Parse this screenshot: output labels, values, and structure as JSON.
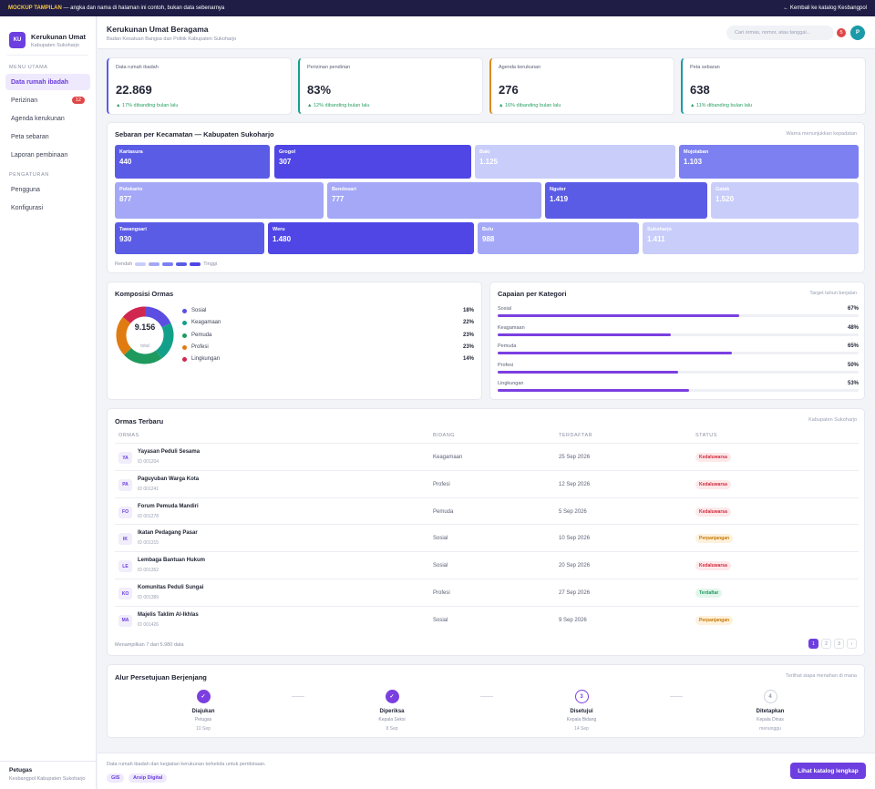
{
  "banner": {
    "tag": "MOCKUP TAMPILAN",
    "text": " — angka dan nama di halaman ini contoh, bukan data sebenarnya",
    "back": "← Kembali ke katalog Kesbangpol"
  },
  "brand": {
    "initials": "KU",
    "name": "Kerukunan Umat",
    "sub": "Kabupaten Sukoharjo"
  },
  "sidebar": {
    "section1": "MENU UTAMA",
    "items": [
      {
        "label": "Data rumah ibadah",
        "active": true
      },
      {
        "label": "Perizinan",
        "badge": "12"
      },
      {
        "label": "Agenda kerukunan"
      },
      {
        "label": "Peta sebaran"
      },
      {
        "label": "Laporan pembinaan"
      }
    ],
    "section2": "PENGATURAN",
    "items2": [
      {
        "label": "Pengguna"
      },
      {
        "label": "Konfigurasi"
      }
    ],
    "footer": {
      "role": "Petugas",
      "org": "Kesbangpol Kabupaten Sukoharjo"
    }
  },
  "header": {
    "title": "Kerukunan Umat Beragama",
    "subtitle": "Badan Kesatuan Bangsa dan Politik Kabupaten Sukoharjo",
    "search_placeholder": "Cari ormas, nomor, atau tanggal...",
    "notif_count": "5",
    "avatar": "P"
  },
  "stats": [
    {
      "label": "Data rumah ibadah",
      "value": "22.869",
      "delta": "▲ 17% dibanding bulan lalu",
      "color": "#5b5ce6"
    },
    {
      "label": "Perizinan pendirian",
      "value": "83%",
      "delta": "▲ 12% dibanding bulan lalu",
      "color": "#13a08a"
    },
    {
      "label": "Agenda kerukunan",
      "value": "276",
      "delta": "▲ 16% dibanding bulan lalu",
      "color": "#e08a12"
    },
    {
      "label": "Peta sebaran",
      "value": "638",
      "delta": "▲ 11% dibanding bulan lalu",
      "color": "#1b9aa8"
    }
  ],
  "map": {
    "title": "Sebaran per Kecamatan — Kabupaten Sukoharjo",
    "note": "Warna menunjukkan kepadatan",
    "tiles": [
      {
        "name": "Kartasura",
        "value": "440"
      },
      {
        "name": "Grogol",
        "value": "307"
      },
      {
        "name": "Baki",
        "value": "1.125"
      },
      {
        "name": "Mojolaban",
        "value": "1.103"
      },
      {
        "name": "Polokarto",
        "value": "877"
      },
      {
        "name": "Bendosari",
        "value": "777"
      },
      {
        "name": "Nguter",
        "value": "1.419"
      },
      {
        "name": "Gatak",
        "value": "1.520"
      },
      {
        "name": "Tawangsari",
        "value": "930"
      },
      {
        "name": "Weru",
        "value": "1.480"
      },
      {
        "name": "Bulu",
        "value": "988"
      },
      {
        "name": "Sukoharjo",
        "value": "1.411"
      }
    ],
    "legend_low": "Rendah",
    "legend_high": "Tinggi"
  },
  "composition": {
    "title": "Komposisi Ormas",
    "total": "9.156",
    "total_label": "total",
    "items": [
      {
        "label": "Sosial",
        "pct": "18%",
        "value": 18,
        "color": "#5b4ee0"
      },
      {
        "label": "Keagamaan",
        "pct": "22%",
        "value": 22,
        "color": "#13a08a"
      },
      {
        "label": "Pemuda",
        "pct": "23%",
        "value": 23,
        "color": "#1f9a5e"
      },
      {
        "label": "Profesi",
        "pct": "23%",
        "value": 23,
        "color": "#e07b12"
      },
      {
        "label": "Lingkungan",
        "pct": "14%",
        "value": 14,
        "color": "#d0264f"
      }
    ]
  },
  "achievement": {
    "title": "Capaian per Kategori",
    "note": "Target tahun berjalan",
    "items": [
      {
        "label": "Sosial",
        "pct": "67%",
        "value": 0.67
      },
      {
        "label": "Keagamaan",
        "pct": "48%",
        "value": 0.48
      },
      {
        "label": "Pemuda",
        "pct": "65%",
        "value": 0.65
      },
      {
        "label": "Profesi",
        "pct": "50%",
        "value": 0.5
      },
      {
        "label": "Lingkungan",
        "pct": "53%",
        "value": 0.53
      }
    ]
  },
  "table": {
    "title": "Ormas Terbaru",
    "note": "Kabupaten Sukoharjo",
    "headers": [
      "ORMAS",
      "BIDANG",
      "TERDAFTAR",
      "STATUS"
    ],
    "rows": [
      {
        "ini": "YA",
        "name": "Yayasan Peduli Sesama",
        "id": "ID 001204",
        "field": "Keagamaan",
        "date": "25 Sep 2026",
        "status": "Kedaluwarsa"
      },
      {
        "ini": "PA",
        "name": "Paguyuban Warga Kota",
        "id": "ID 001241",
        "field": "Profesi",
        "date": "12 Sep 2026",
        "status": "Kedaluwarsa"
      },
      {
        "ini": "FO",
        "name": "Forum Pemuda Mandiri",
        "id": "ID 001278",
        "field": "Pemuda",
        "date": "5 Sep 2026",
        "status": "Kedaluwarsa"
      },
      {
        "ini": "IK",
        "name": "Ikatan Pedagang Pasar",
        "id": "ID 001315",
        "field": "Sosial",
        "date": "10 Sep 2026",
        "status": "Perpanjangan"
      },
      {
        "ini": "LE",
        "name": "Lembaga Bantuan Hukum",
        "id": "ID 001352",
        "field": "Sosial",
        "date": "20 Sep 2026",
        "status": "Kedaluwarsa"
      },
      {
        "ini": "KO",
        "name": "Komunitas Peduli Sungai",
        "id": "ID 001389",
        "field": "Profesi",
        "date": "27 Sep 2026",
        "status": "Terdaftar"
      },
      {
        "ini": "MA",
        "name": "Majelis Taklim Al-Ikhlas",
        "id": "ID 001426",
        "field": "Sosial",
        "date": "9 Sep 2026",
        "status": "Perpanjangan"
      }
    ],
    "summary": "Menampilkan 7 dari 5.980 data",
    "pages": [
      "1",
      "2",
      "3",
      "›"
    ]
  },
  "workflow": {
    "title": "Alur Persetujuan Berjenjang",
    "note": "Terlihat siapa menahan di mana",
    "steps": [
      {
        "mark": "✓",
        "name": "Diajukan",
        "who": "Petugas",
        "when": "10 Sep",
        "state": "done"
      },
      {
        "mark": "✓",
        "name": "Diperiksa",
        "who": "Kepala Seksi",
        "when": "8 Sep",
        "state": "done"
      },
      {
        "mark": "3",
        "name": "Disetujui",
        "who": "Kepala Bidang",
        "when": "14 Sep",
        "state": "current"
      },
      {
        "mark": "4",
        "name": "Ditetapkan",
        "who": "Kepala Dinas",
        "when": "menunggu",
        "state": "pending"
      }
    ]
  },
  "footer": {
    "text": "Data rumah ibadah dan kegiatan kerukunan terkelola untuk pembinaan.",
    "chips": [
      "GIS",
      "Arsip Digital"
    ],
    "cta": "Lihat katalog lengkap"
  }
}
